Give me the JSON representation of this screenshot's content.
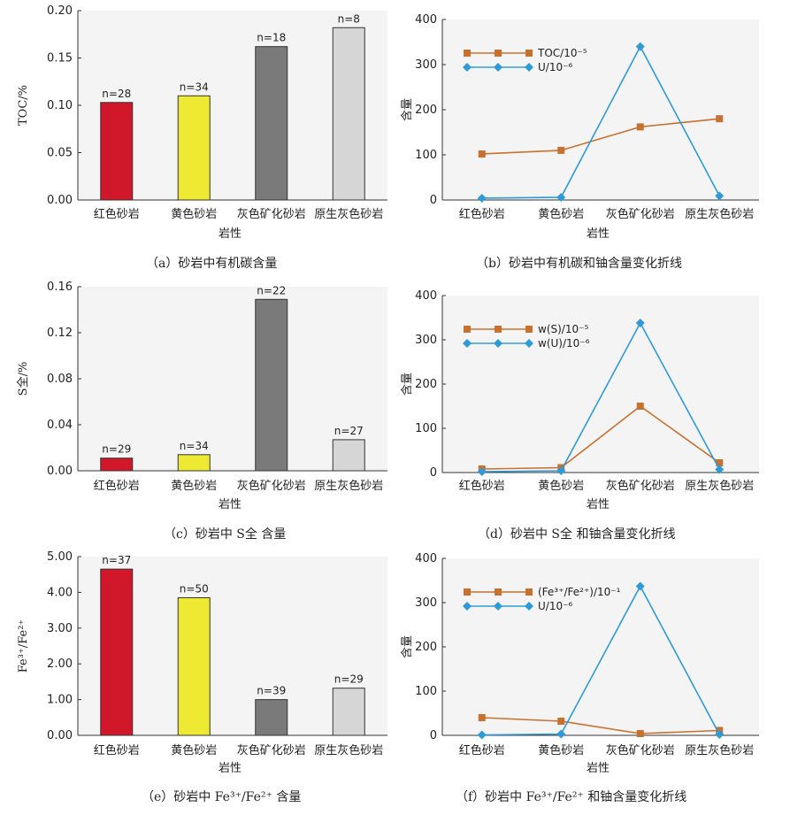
{
  "chart_data": [
    {
      "id": "a",
      "type": "bar",
      "caption": "（a）砂岩中有机碳含量",
      "categories": [
        "红色砂岩",
        "黄色砂岩",
        "灰色矿化砂岩",
        "原生灰色砂岩"
      ],
      "values": [
        0.103,
        0.11,
        0.162,
        0.182
      ],
      "n_labels": [
        "n=28",
        "n=34",
        "n=18",
        "n=8"
      ],
      "colors": [
        "#d0182a",
        "#eeea34",
        "#7a7a7a",
        "#d6d6d6"
      ],
      "ylabel": "TOC/%",
      "xlabel": "岩性",
      "ylim": [
        0,
        0.2
      ],
      "yticks": [
        "0.00",
        "0.05",
        "0.10",
        "0.15",
        "0.20"
      ],
      "ytick_values": [
        0,
        0.05,
        0.1,
        0.15,
        0.2
      ]
    },
    {
      "id": "b",
      "type": "line",
      "caption": "（b）砂岩中有机碳和铀含量变化折线",
      "categories": [
        "红色砂岩",
        "黄色砂岩",
        "灰色矿化砂岩",
        "原生灰色砂岩"
      ],
      "series": [
        {
          "name": "TOC/10⁻⁵",
          "values": [
            102,
            110,
            162,
            180
          ],
          "color": "#c8702e",
          "marker": "square"
        },
        {
          "name": "U/10⁻⁶",
          "values": [
            4,
            6,
            340,
            9
          ],
          "color": "#2e9bd8",
          "marker": "diamond"
        }
      ],
      "ylabel": "含量",
      "xlabel": "岩性",
      "ylim": [
        0,
        400
      ],
      "yticks": [
        "0",
        "100",
        "200",
        "300",
        "400"
      ],
      "ytick_values": [
        0,
        100,
        200,
        300,
        400
      ],
      "legend": "top-left"
    },
    {
      "id": "c",
      "type": "bar",
      "caption": "（c）砂岩中 S全 含量",
      "categories": [
        "红色砂岩",
        "黄色砂岩",
        "灰色矿化砂岩",
        "原生灰色砂岩"
      ],
      "values": [
        0.011,
        0.014,
        0.149,
        0.027
      ],
      "n_labels": [
        "n=29",
        "n=34",
        "n=22",
        "n=27"
      ],
      "colors": [
        "#d0182a",
        "#eeea34",
        "#7a7a7a",
        "#d6d6d6"
      ],
      "ylabel": "S全/%",
      "xlabel": "岩性",
      "ylim": [
        0,
        0.16
      ],
      "yticks": [
        "0.00",
        "0.04",
        "0.08",
        "0.12",
        "0.16"
      ],
      "ytick_values": [
        0,
        0.04,
        0.08,
        0.12,
        0.16
      ]
    },
    {
      "id": "d",
      "type": "line",
      "caption": "（d）砂岩中 S全 和铀含量变化折线",
      "categories": [
        "红色砂岩",
        "黄色砂岩",
        "灰色矿化砂岩",
        "原生灰色砂岩"
      ],
      "series": [
        {
          "name": "w(S)/10⁻⁵",
          "values": [
            8,
            11,
            150,
            22
          ],
          "color": "#c8702e",
          "marker": "square"
        },
        {
          "name": "w(U)/10⁻⁶",
          "values": [
            2,
            4,
            338,
            7
          ],
          "color": "#2e9bd8",
          "marker": "diamond"
        }
      ],
      "ylabel": "含量",
      "xlabel": "岩性",
      "ylim": [
        0,
        400
      ],
      "yticks": [
        "0",
        "100",
        "200",
        "300",
        "400"
      ],
      "ytick_values": [
        0,
        100,
        200,
        300,
        400
      ],
      "legend": "top-left"
    },
    {
      "id": "e",
      "type": "bar",
      "caption": "（e）砂岩中 Fe³⁺/Fe²⁺ 含量",
      "categories": [
        "红色砂岩",
        "黄色砂岩",
        "灰色矿化砂岩",
        "原生灰色砂岩"
      ],
      "values": [
        4.65,
        3.85,
        1.0,
        1.32
      ],
      "n_labels": [
        "n=37",
        "n=50",
        "n=39",
        "n=29"
      ],
      "colors": [
        "#d0182a",
        "#eeea34",
        "#7a7a7a",
        "#d6d6d6"
      ],
      "ylabel": "Fe³⁺/Fe²⁺",
      "xlabel": "岩性",
      "ylim": [
        0,
        5
      ],
      "yticks": [
        "0.00",
        "1.00",
        "2.00",
        "3.00",
        "4.00",
        "5.00"
      ],
      "ytick_values": [
        0,
        1,
        2,
        3,
        4,
        5
      ]
    },
    {
      "id": "f",
      "type": "line",
      "caption": "（f）砂岩中 Fe³⁺/Fe²⁺ 和铀含量变化折线",
      "categories": [
        "红色砂岩",
        "黄色砂岩",
        "灰色矿化砂岩",
        "原生灰色砂岩"
      ],
      "series": [
        {
          "name": "(Fe³⁺/Fe²⁺)/10⁻¹",
          "values": [
            40,
            32,
            4,
            11
          ],
          "color": "#c8702e",
          "marker": "square"
        },
        {
          "name": "U/10⁻⁶",
          "values": [
            1,
            3,
            337,
            2
          ],
          "color": "#2e9bd8",
          "marker": "diamond"
        }
      ],
      "ylabel": "含量",
      "xlabel": "岩性",
      "ylim": [
        0,
        400
      ],
      "yticks": [
        "0",
        "100",
        "200",
        "300",
        "400"
      ],
      "ytick_values": [
        0,
        100,
        200,
        300,
        400
      ],
      "legend": "top-left"
    }
  ]
}
